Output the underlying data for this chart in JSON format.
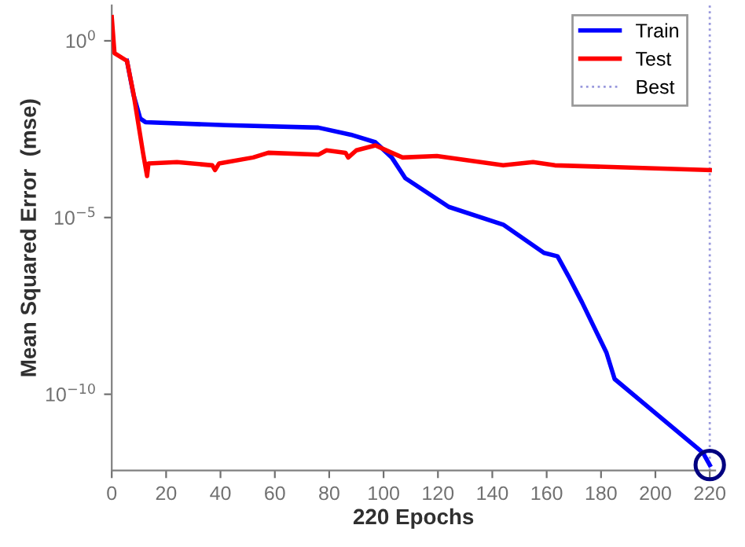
{
  "chart_data": {
    "type": "line",
    "xlabel": "220 Epochs",
    "ylabel": "Mean Squared Error  (mse)",
    "xlim": [
      0,
      222
    ],
    "ylim": [
      7e-13,
      10
    ],
    "log": "y",
    "xticks": [
      0,
      20,
      40,
      60,
      80,
      100,
      120,
      140,
      160,
      180,
      200,
      220
    ],
    "yticks": [
      {
        "value": 1e-10,
        "label": "10$^{−10}$"
      },
      {
        "value": 1e-05,
        "label": "10$^{−5}$"
      },
      {
        "value": 1,
        "label": "10$^{0}$"
      }
    ],
    "series": [
      {
        "name": "Train",
        "color": "#0000ff",
        "x": [
          5.6,
          8,
          10.5,
          12.4,
          42,
          76,
          88,
          97,
          103,
          108,
          124,
          144,
          159,
          164,
          168,
          173,
          182,
          185,
          217.5,
          220
        ],
        "values": [
          0.27,
          0.03,
          0.0063,
          0.005,
          0.0041,
          0.0035,
          0.0022,
          0.00135,
          0.0005,
          0.00013,
          2e-05,
          6.3e-06,
          1e-06,
          8e-07,
          2.2e-07,
          4e-08,
          1.5e-09,
          2.7e-10,
          2.2e-12,
          1e-12
        ]
      },
      {
        "name": "Test",
        "color": "#ff0000",
        "x": [
          0,
          1,
          5.6,
          8,
          11.5,
          13,
          13.5,
          24,
          37,
          38,
          39.5,
          52,
          57.6,
          76,
          79,
          86,
          87,
          90,
          97,
          103,
          107,
          119.6,
          144,
          155,
          163,
          220
        ],
        "values": [
          4.7,
          0.45,
          0.27,
          0.032,
          0.00068,
          0.00015,
          0.00034,
          0.00037,
          0.0003,
          0.00022,
          0.00034,
          0.0005,
          0.00068,
          0.0006,
          0.0008,
          0.00068,
          0.0005,
          0.0008,
          0.0011,
          0.00068,
          0.0005,
          0.00055,
          0.0003,
          0.00037,
          0.0003,
          0.00022
        ]
      },
      {
        "type": "scatter",
        "marker": "circle",
        "color": "#000080",
        "x": [
          220
        ],
        "values": [
          1e-12
        ]
      }
    ],
    "ref_lines": [
      {
        "axis": "x",
        "value": 220,
        "label": "Best",
        "color": "#9999dd",
        "line_style": "dotted"
      }
    ],
    "legend": "top right",
    "grid": false
  }
}
